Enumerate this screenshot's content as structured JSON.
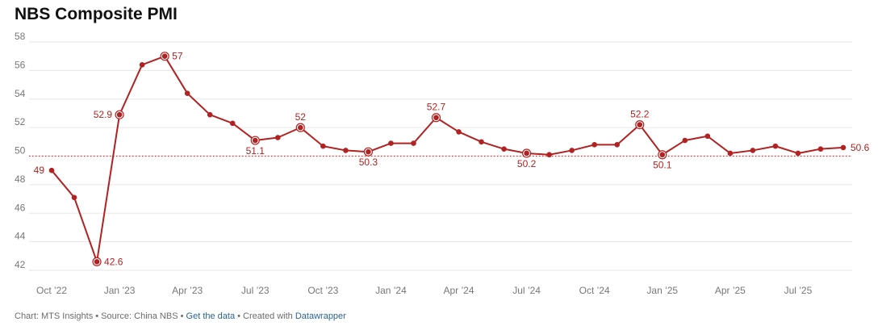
{
  "title": "NBS Composite PMI",
  "footer": {
    "chart_label": "Chart: MTS Insights",
    "sep1": " • ",
    "source": "Source: China NBS",
    "sep2": " • ",
    "get_data_link": "Get the data",
    "sep3": " • ",
    "created_prefix": "Created with ",
    "datawrapper_link": "Datawrapper"
  },
  "colors": {
    "series": "#b22222",
    "reference_line": "#cc3333",
    "grid": "#e6e6e6",
    "tick_text": "#777777",
    "link": "#2a6496"
  },
  "chart_data": {
    "type": "line",
    "title": "NBS Composite PMI",
    "xlabel": "",
    "ylabel": "",
    "ylim": [
      42,
      58
    ],
    "yticks": [
      42,
      44,
      46,
      48,
      50,
      52,
      54,
      56,
      58
    ],
    "grid": true,
    "reference_line": 50,
    "x": [
      "2022-10",
      "2022-11",
      "2022-12",
      "2023-01",
      "2023-02",
      "2023-03",
      "2023-04",
      "2023-05",
      "2023-06",
      "2023-07",
      "2023-08",
      "2023-09",
      "2023-10",
      "2023-11",
      "2023-12",
      "2024-01",
      "2024-02",
      "2024-03",
      "2024-04",
      "2024-05",
      "2024-06",
      "2024-07",
      "2024-08",
      "2024-09",
      "2024-10",
      "2024-11",
      "2024-12",
      "2025-01",
      "2025-02",
      "2025-03",
      "2025-04",
      "2025-05",
      "2025-06",
      "2025-07",
      "2025-08",
      "2025-09"
    ],
    "series": [
      {
        "values": [
          49.0,
          47.1,
          42.6,
          52.9,
          56.4,
          57.0,
          54.4,
          52.9,
          52.3,
          51.1,
          51.3,
          52.0,
          50.7,
          50.4,
          50.3,
          50.9,
          50.9,
          52.7,
          51.7,
          51.0,
          50.5,
          50.2,
          50.1,
          50.4,
          50.8,
          50.8,
          52.2,
          50.1,
          51.1,
          51.4,
          50.2,
          50.4,
          50.7,
          50.2,
          50.5,
          50.6
        ]
      }
    ],
    "xtick_labels": [
      {
        "x": "2022-10",
        "label": "Oct ’22"
      },
      {
        "x": "2023-01",
        "label": "Jan ’23"
      },
      {
        "x": "2023-04",
        "label": "Apr ’23"
      },
      {
        "x": "2023-07",
        "label": "Jul ’23"
      },
      {
        "x": "2023-10",
        "label": "Oct ’23"
      },
      {
        "x": "2024-01",
        "label": "Jan ’24"
      },
      {
        "x": "2024-04",
        "label": "Apr ’24"
      },
      {
        "x": "2024-07",
        "label": "Jul ’24"
      },
      {
        "x": "2024-10",
        "label": "Oct ’24"
      },
      {
        "x": "2025-01",
        "label": "Jan ’25"
      },
      {
        "x": "2025-04",
        "label": "Apr ’25"
      },
      {
        "x": "2025-07",
        "label": "Jul ’25"
      }
    ],
    "annotations": [
      {
        "x": "2022-10",
        "value": 49,
        "label": "49",
        "side": "left",
        "ring": false
      },
      {
        "x": "2022-12",
        "value": 42.6,
        "label": "42.6",
        "side": "right",
        "ring": true
      },
      {
        "x": "2023-01",
        "value": 52.9,
        "label": "52.9",
        "side": "left",
        "ring": true
      },
      {
        "x": "2023-03",
        "value": 57,
        "label": "57",
        "side": "right",
        "ring": true
      },
      {
        "x": "2023-07",
        "value": 51.1,
        "label": "51.1",
        "side": "below",
        "ring": true
      },
      {
        "x": "2023-09",
        "value": 52,
        "label": "52",
        "side": "above",
        "ring": true
      },
      {
        "x": "2023-12",
        "value": 50.3,
        "label": "50.3",
        "side": "below",
        "ring": true
      },
      {
        "x": "2024-03",
        "value": 52.7,
        "label": "52.7",
        "side": "above",
        "ring": true
      },
      {
        "x": "2024-07",
        "value": 50.2,
        "label": "50.2",
        "side": "below",
        "ring": true
      },
      {
        "x": "2024-12",
        "value": 52.2,
        "label": "52.2",
        "side": "above",
        "ring": true
      },
      {
        "x": "2025-01",
        "value": 50.1,
        "label": "50.1",
        "side": "below",
        "ring": true
      },
      {
        "x": "2025-09",
        "value": 50.6,
        "label": "50.6",
        "side": "right",
        "ring": false
      }
    ]
  }
}
